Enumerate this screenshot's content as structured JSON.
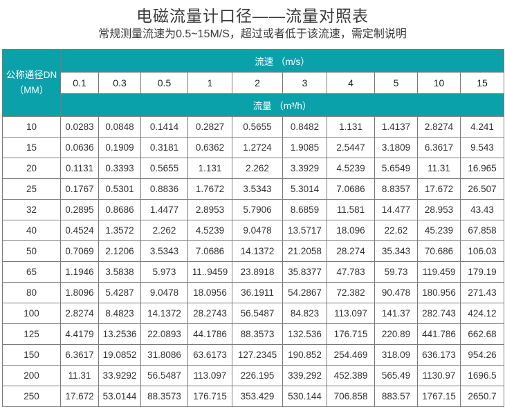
{
  "title": "电磁流量计口径——流量对照表",
  "subtitle": "常规测量流速为0.5~15M/S，超过或者低于该流速，需定制说明",
  "colors": {
    "header_bg": "#0aa1ab",
    "header_text": "#ffffff",
    "border": "#7a7a7a"
  },
  "table": {
    "dn_header_line1": "公称通径DN",
    "dn_header_line2": "（MM）",
    "velocity_header": "流速 （m/s）",
    "flow_header": "流量 （m³/h）",
    "velocities": [
      "0.1",
      "0.3",
      "0.5",
      "1",
      "2",
      "3",
      "4",
      "5",
      "10",
      "15"
    ],
    "rows": [
      {
        "dn": "10",
        "values": [
          "0.0283",
          "0.0848",
          "0.1414",
          "0.2827",
          "0.5655",
          "0.8482",
          "1.131",
          "1.4137",
          "2.8274",
          "4.241"
        ]
      },
      {
        "dn": "15",
        "values": [
          "0.0636",
          "0.1909",
          "0.3181",
          "0.6362",
          "1.2724",
          "1.9085",
          "2.5447",
          "3.1809",
          "6.3617",
          "9.543"
        ]
      },
      {
        "dn": "20",
        "values": [
          "0.1131",
          "0.3393",
          "0.5655",
          "1.131",
          "2.262",
          "3.3929",
          "4.5239",
          "5.6549",
          "11.31",
          "16.965"
        ]
      },
      {
        "dn": "25",
        "values": [
          "0.1767",
          "0.5301",
          "0.8836",
          "1.7672",
          "3.5343",
          "5.3014",
          "7.0686",
          "8.8357",
          "17.672",
          "26.507"
        ]
      },
      {
        "dn": "32",
        "values": [
          "0.2895",
          "0.8686",
          "1.4477",
          "2.8953",
          "5.7906",
          "8.6859",
          "11.581",
          "14.477",
          "28.953",
          "43.43"
        ]
      },
      {
        "dn": "40",
        "values": [
          "0.4524",
          "1.3572",
          "2.262",
          "4.5239",
          "9.0478",
          "13.5717",
          "18.096",
          "22.62",
          "45.239",
          "67.858"
        ]
      },
      {
        "dn": "50",
        "values": [
          "0.7069",
          "2.1206",
          "3.5343",
          "7.0686",
          "14.1372",
          "21.2058",
          "28.274",
          "35.343",
          "70.686",
          "106.03"
        ]
      },
      {
        "dn": "65",
        "values": [
          "1.1946",
          "3.5838",
          "5.973",
          "11..9459",
          "23.8918",
          "35.8377",
          "47.783",
          "59.73",
          "119.459",
          "179.19"
        ]
      },
      {
        "dn": "80",
        "values": [
          "1.8096",
          "5.4287",
          "9.0478",
          "18.0956",
          "36.1911",
          "54.2867",
          "72.382",
          "90.478",
          "180.956",
          "271.43"
        ]
      },
      {
        "dn": "100",
        "values": [
          "2.8274",
          "8.4823",
          "14.1372",
          "28.2743",
          "56.5487",
          "84.823",
          "113.097",
          "141.37",
          "282.743",
          "424.12"
        ]
      },
      {
        "dn": "125",
        "values": [
          "4.4179",
          "13.2536",
          "22.0893",
          "44.1786",
          "88.3573",
          "132.536",
          "176.715",
          "220.89",
          "441.786",
          "662.68"
        ]
      },
      {
        "dn": "150",
        "values": [
          "6.3617",
          "19.0852",
          "31.8086",
          "63.6173",
          "127.2345",
          "190.852",
          "254.469",
          "318.09",
          "636.173",
          "954.26"
        ]
      },
      {
        "dn": "200",
        "values": [
          "11.31",
          "33.9292",
          "56.5487",
          "113.097",
          "226.195",
          "339.292",
          "452.389",
          "565.49",
          "1130.97",
          "1696.5"
        ]
      },
      {
        "dn": "250",
        "values": [
          "17.672",
          "53.0144",
          "88.3573",
          "176.715",
          "353.429",
          "530.144",
          "706.858",
          "883.57",
          "1767.15",
          "2650.7"
        ]
      }
    ]
  }
}
